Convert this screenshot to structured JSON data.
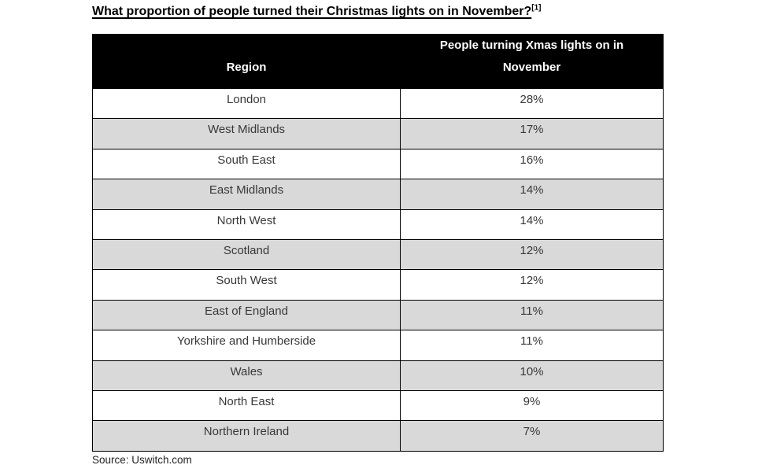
{
  "page": {
    "title": "What proportion of people turned their Christmas lights on in November?",
    "footnote_marker": "[1]",
    "source": "Source: Uswitch.com"
  },
  "table": {
    "columns": [
      "Region",
      "People turning Xmas lights on in November"
    ],
    "rows": [
      {
        "region": "London",
        "value": "28%"
      },
      {
        "region": "West Midlands",
        "value": "17%"
      },
      {
        "region": "South East",
        "value": "16%"
      },
      {
        "region": "East Midlands",
        "value": "14%"
      },
      {
        "region": "North West",
        "value": "14%"
      },
      {
        "region": "Scotland",
        "value": "12%"
      },
      {
        "region": "South West",
        "value": "12%"
      },
      {
        "region": "East of England",
        "value": "11%"
      },
      {
        "region": "Yorkshire and Humberside",
        "value": "11%"
      },
      {
        "region": "Wales",
        "value": "10%"
      },
      {
        "region": "North East",
        "value": "9%"
      },
      {
        "region": "Northern Ireland",
        "value": "7%"
      }
    ]
  },
  "colors": {
    "header_bg": "#000000",
    "header_text": "#ffffff",
    "row_shade": "#d9d9d9",
    "border": "#000000",
    "cell_text": "#383838"
  },
  "chart_data": {
    "type": "table",
    "title": "What proportion of people turned their Christmas lights on in November?",
    "columns": [
      "Region",
      "People turning Xmas lights on in November"
    ],
    "categories": [
      "London",
      "West Midlands",
      "South East",
      "East Midlands",
      "North West",
      "Scotland",
      "South West",
      "East of England",
      "Yorkshire and Humberside",
      "Wales",
      "North East",
      "Northern Ireland"
    ],
    "values": [
      28,
      17,
      16,
      14,
      14,
      12,
      12,
      11,
      11,
      10,
      9,
      7
    ],
    "unit": "%",
    "source": "Source: Uswitch.com",
    "layout": "black header row, alternating white and light-gray body rows, centered text"
  }
}
